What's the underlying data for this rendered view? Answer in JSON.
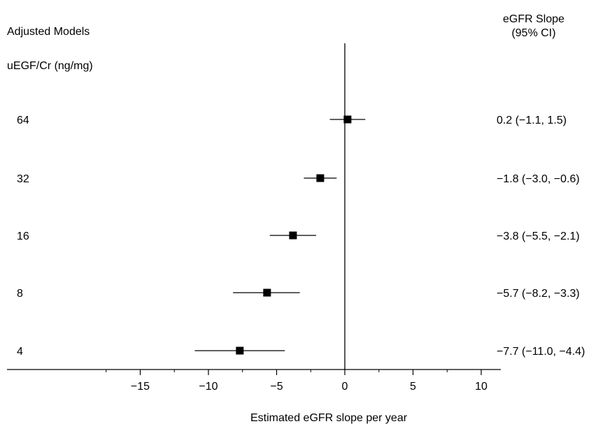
{
  "header": {
    "left_title": "Adjusted Models",
    "group_label": "uEGF/Cr (ng/mg)",
    "right_title_line1": "eGFR Slope",
    "right_title_line2": "(95% CI)"
  },
  "chart_data": {
    "type": "forest",
    "xlabel": "Estimated eGFR slope per year",
    "xlim": [
      -20,
      10
    ],
    "xticks": [
      -15,
      -10,
      -5,
      0,
      5,
      10
    ],
    "xtick_labels": [
      "−15",
      "−10",
      "−5",
      "0",
      "5",
      "10"
    ],
    "reference_line": 0,
    "rows": [
      {
        "label": "64",
        "estimate": 0.2,
        "lower": -1.1,
        "upper": 1.5,
        "ci_text": "0.2 (−1.1, 1.5)"
      },
      {
        "label": "32",
        "estimate": -1.8,
        "lower": -3.0,
        "upper": -0.6,
        "ci_text": "−1.8 (−3.0, −0.6)"
      },
      {
        "label": "16",
        "estimate": -3.8,
        "lower": -5.5,
        "upper": -2.1,
        "ci_text": "−3.8 (−5.5, −2.1)"
      },
      {
        "label": "8",
        "estimate": -5.7,
        "lower": -8.2,
        "upper": -3.3,
        "ci_text": "−5.7 (−8.2, −3.3)"
      },
      {
        "label": "4",
        "estimate": -7.7,
        "lower": -11.0,
        "upper": -4.4,
        "ci_text": "−7.7 (−11.0, −4.4)"
      }
    ],
    "marker": "square",
    "marker_color": "#000000",
    "grid": false
  }
}
